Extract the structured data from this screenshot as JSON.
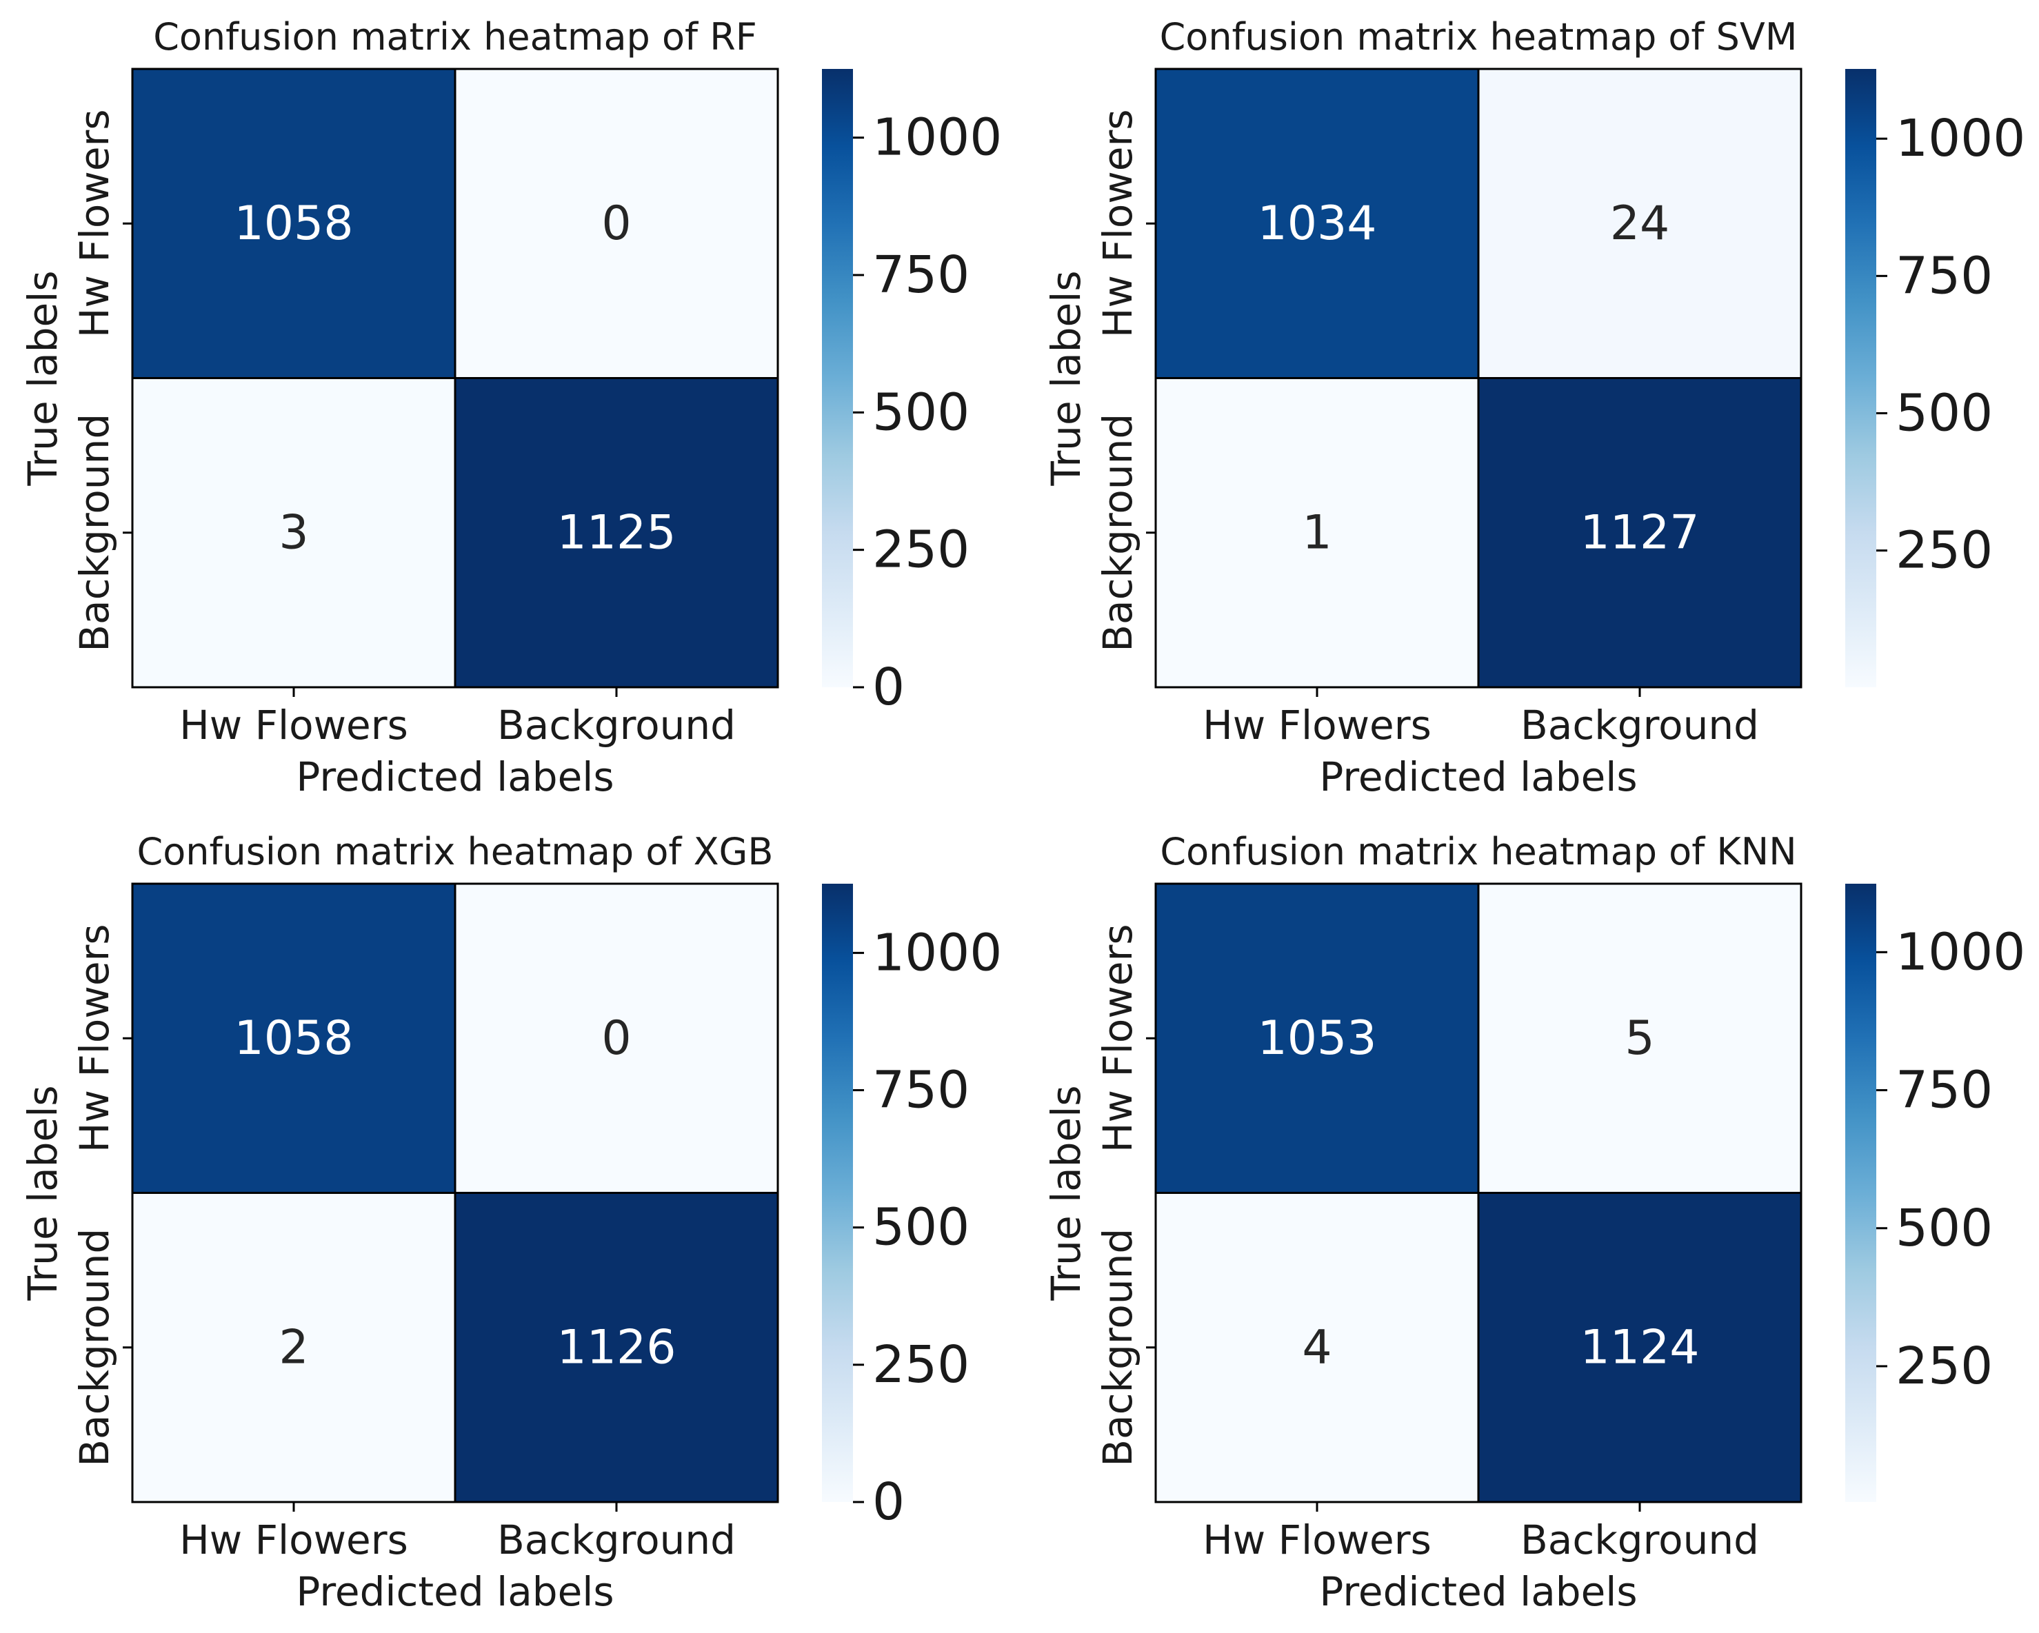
{
  "colormap": {
    "name": "Blues",
    "stops": [
      "#f7fbff",
      "#deebf7",
      "#c6dbef",
      "#9ecae1",
      "#6baed6",
      "#4292c6",
      "#2171b5",
      "#08519c",
      "#08306b"
    ]
  },
  "chart_data": [
    {
      "type": "heatmap",
      "title": "Confusion matrix heatmap of RF",
      "xlabel": "Predicted labels",
      "ylabel": "True labels",
      "x_categories": [
        "Hw Flowers",
        "Background"
      ],
      "y_categories": [
        "Hw Flowers",
        "Background"
      ],
      "values": [
        [
          1058,
          0
        ],
        [
          3,
          1125
        ]
      ],
      "colorbar": {
        "range": [
          0,
          1125
        ],
        "ticks": [
          0,
          250,
          500,
          750,
          1000
        ],
        "tick_labels": [
          "0",
          "250",
          "500",
          "750",
          "1000"
        ]
      }
    },
    {
      "type": "heatmap",
      "title": "Confusion matrix heatmap of SVM",
      "xlabel": "Predicted labels",
      "ylabel": "True labels",
      "x_categories": [
        "Hw Flowers",
        "Background"
      ],
      "y_categories": [
        "Hw Flowers",
        "Background"
      ],
      "values": [
        [
          1034,
          24
        ],
        [
          1,
          1127
        ]
      ],
      "colorbar": {
        "range": [
          1,
          1127
        ],
        "ticks": [
          250,
          500,
          750,
          1000
        ],
        "tick_labels": [
          "250",
          "500",
          "750",
          "1000"
        ]
      }
    },
    {
      "type": "heatmap",
      "title": "Confusion matrix heatmap of XGB",
      "xlabel": "Predicted labels",
      "ylabel": "True labels",
      "x_categories": [
        "Hw Flowers",
        "Background"
      ],
      "y_categories": [
        "Hw Flowers",
        "Background"
      ],
      "values": [
        [
          1058,
          0
        ],
        [
          2,
          1126
        ]
      ],
      "colorbar": {
        "range": [
          0,
          1126
        ],
        "ticks": [
          0,
          250,
          500,
          750,
          1000
        ],
        "tick_labels": [
          "0",
          "250",
          "500",
          "750",
          "1000"
        ]
      }
    },
    {
      "type": "heatmap",
      "title": "Confusion matrix heatmap of KNN",
      "xlabel": "Predicted labels",
      "ylabel": "True labels",
      "x_categories": [
        "Hw Flowers",
        "Background"
      ],
      "y_categories": [
        "Hw Flowers",
        "Background"
      ],
      "values": [
        [
          1053,
          5
        ],
        [
          4,
          1124
        ]
      ],
      "colorbar": {
        "range": [
          4,
          1124
        ],
        "ticks": [
          250,
          500,
          750,
          1000
        ],
        "tick_labels": [
          "250",
          "500",
          "750",
          "1000"
        ]
      }
    }
  ]
}
